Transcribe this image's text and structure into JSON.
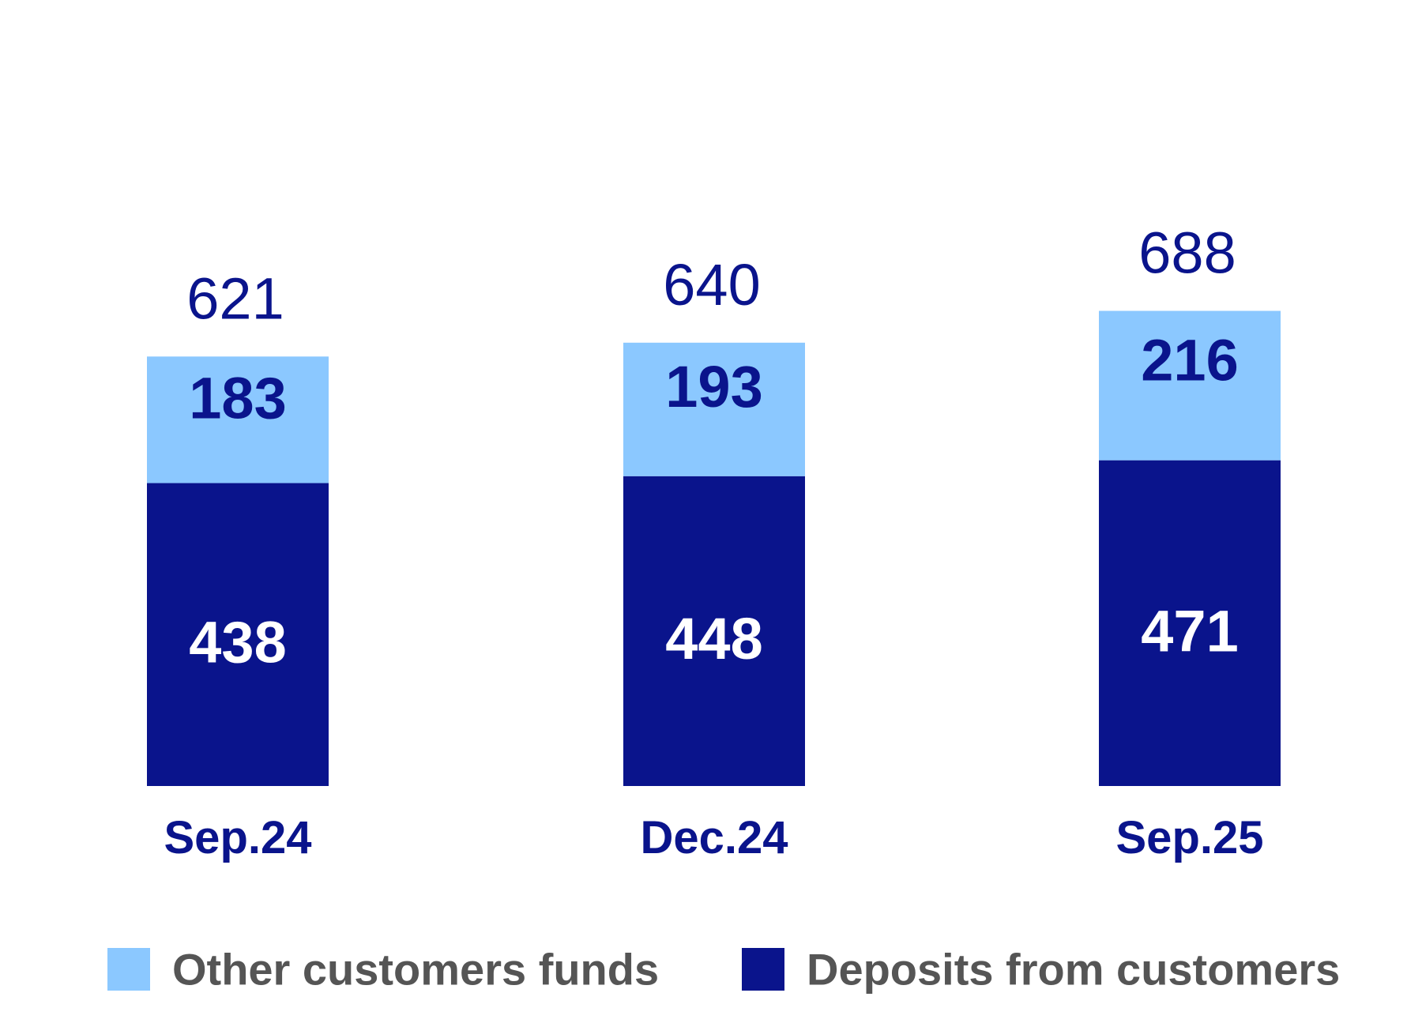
{
  "chart_data": {
    "type": "bar",
    "stacked": true,
    "categories": [
      "Sep.24",
      "Dec.24",
      "Sep.25"
    ],
    "series": [
      {
        "name": "Deposits from customers",
        "values": [
          438,
          448,
          471
        ],
        "color": "#0a148c",
        "label_color": "#ffffff"
      },
      {
        "name": "Other customers funds",
        "values": [
          183,
          193,
          216
        ],
        "color": "#8bc8ff",
        "label_color": "#0a148c"
      }
    ],
    "totals": [
      "621",
      "640",
      "688"
    ],
    "labels": {
      "Deposits from customers": [
        "438",
        "448",
        "471"
      ],
      "Other customers funds": [
        "183",
        "193",
        "216"
      ]
    },
    "legend": [
      {
        "name": "Other customers funds",
        "color": "#8bc8ff"
      },
      {
        "name": "Deposits from customers",
        "color": "#0a148c"
      }
    ],
    "title": "",
    "xlabel": "",
    "ylabel": "",
    "ylim": [
      0,
      700
    ],
    "grid": false,
    "legend_position": "bottom",
    "text_color": "#0a148c",
    "legend_text_color": "#555555"
  }
}
